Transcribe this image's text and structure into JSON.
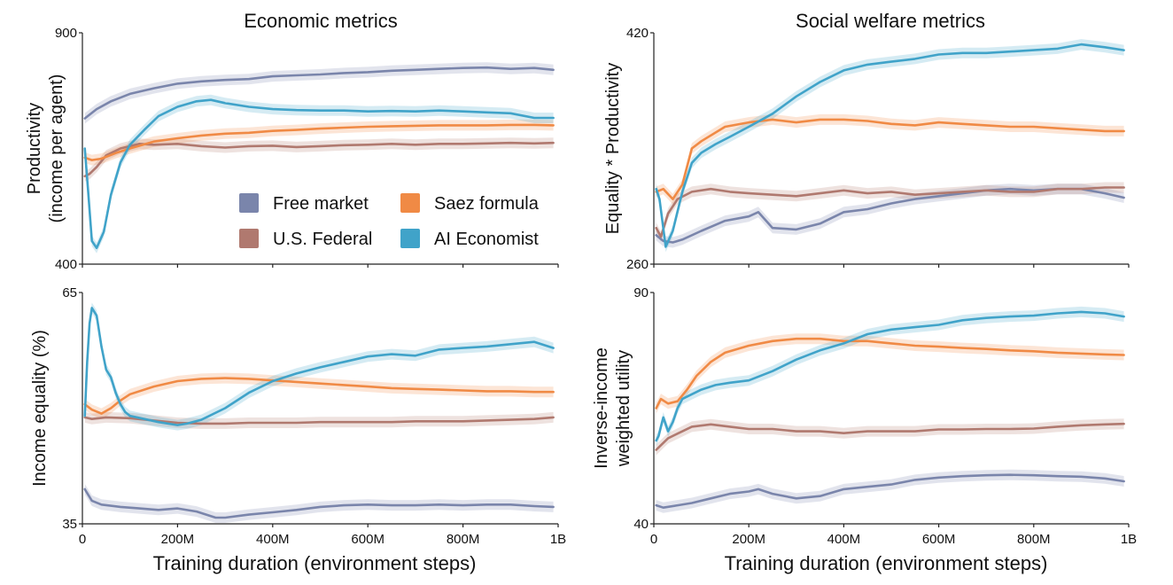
{
  "column_titles": [
    "Economic metrics",
    "Social welfare metrics"
  ],
  "x_axis_title": "Training duration (environment steps)",
  "legend": [
    {
      "name": "Free market",
      "color": "#7a85ab"
    },
    {
      "name": "Saez formula",
      "color": "#f08a45"
    },
    {
      "name": "U.S. Federal",
      "color": "#b0796f"
    },
    {
      "name": "AI Economist",
      "color": "#40a3c9"
    }
  ],
  "chart_data": [
    {
      "type": "line",
      "column_title": "Economic metrics",
      "ylabel_lines": [
        "Productivity",
        "(income per agent)"
      ],
      "xlim": [
        0,
        1000
      ],
      "ylim": [
        400,
        900
      ],
      "x_ticks": [
        0,
        200,
        400,
        600,
        800,
        1000
      ],
      "x_tick_labels": [
        "0",
        "200M",
        "400M",
        "600M",
        "800M",
        "1B"
      ],
      "y_ticks": [
        400,
        900
      ],
      "y_tick_labels": [
        "400",
        "900"
      ],
      "series": [
        {
          "name": "Free market",
          "x": [
            5,
            30,
            60,
            100,
            150,
            200,
            250,
            300,
            350,
            400,
            450,
            500,
            550,
            600,
            650,
            700,
            750,
            800,
            850,
            900,
            950,
            990
          ],
          "y": [
            715,
            735,
            752,
            768,
            780,
            790,
            795,
            798,
            800,
            806,
            808,
            810,
            813,
            815,
            818,
            820,
            822,
            824,
            825,
            822,
            824,
            820
          ]
        },
        {
          "name": "Saez formula",
          "x": [
            5,
            20,
            40,
            70,
            100,
            150,
            200,
            250,
            300,
            350,
            400,
            450,
            500,
            550,
            600,
            650,
            700,
            750,
            800,
            850,
            900,
            950,
            990
          ],
          "y": [
            630,
            625,
            628,
            640,
            650,
            665,
            672,
            678,
            682,
            684,
            688,
            690,
            693,
            695,
            697,
            698,
            699,
            700,
            700,
            700,
            701,
            701,
            700
          ]
        },
        {
          "name": "U.S. Federal",
          "x": [
            5,
            15,
            30,
            50,
            80,
            120,
            150,
            200,
            250,
            300,
            350,
            400,
            450,
            500,
            550,
            600,
            650,
            700,
            750,
            800,
            850,
            900,
            950,
            990
          ],
          "y": [
            590,
            595,
            610,
            635,
            650,
            660,
            658,
            660,
            655,
            652,
            655,
            656,
            653,
            655,
            657,
            658,
            660,
            658,
            660,
            660,
            661,
            662,
            661,
            662
          ]
        },
        {
          "name": "AI Economist",
          "x": [
            5,
            12,
            20,
            30,
            45,
            60,
            80,
            100,
            130,
            160,
            200,
            240,
            270,
            300,
            350,
            400,
            450,
            500,
            550,
            600,
            650,
            700,
            750,
            800,
            850,
            900,
            950,
            990
          ],
          "y": [
            650,
            560,
            450,
            435,
            470,
            550,
            620,
            658,
            690,
            720,
            740,
            752,
            755,
            748,
            740,
            735,
            733,
            732,
            732,
            730,
            731,
            730,
            732,
            730,
            728,
            726,
            716,
            716
          ]
        }
      ]
    },
    {
      "type": "line",
      "column_title": "Social welfare metrics",
      "ylabel_lines": [
        "Equality * Productivity"
      ],
      "xlim": [
        0,
        1000
      ],
      "ylim": [
        260,
        420
      ],
      "x_ticks": [
        0,
        200,
        400,
        600,
        800,
        1000
      ],
      "x_tick_labels": [
        "0",
        "200M",
        "400M",
        "600M",
        "800M",
        "1B"
      ],
      "y_ticks": [
        260,
        420
      ],
      "y_tick_labels": [
        "260",
        "420"
      ],
      "series": [
        {
          "name": "Free market",
          "x": [
            5,
            20,
            40,
            60,
            100,
            150,
            200,
            220,
            250,
            300,
            350,
            400,
            450,
            500,
            550,
            600,
            650,
            700,
            750,
            800,
            850,
            900,
            950,
            990
          ],
          "y": [
            280,
            276,
            275,
            277,
            283,
            290,
            293,
            296,
            285,
            284,
            288,
            296,
            298,
            302,
            305,
            307,
            309,
            311,
            312,
            311,
            312,
            312,
            309,
            306
          ]
        },
        {
          "name": "Saez formula",
          "x": [
            5,
            20,
            40,
            60,
            80,
            100,
            150,
            200,
            250,
            300,
            350,
            400,
            450,
            500,
            550,
            600,
            650,
            700,
            750,
            800,
            850,
            900,
            950,
            990
          ],
          "y": [
            310,
            312,
            305,
            315,
            340,
            345,
            355,
            358,
            360,
            358,
            360,
            360,
            359,
            357,
            356,
            358,
            357,
            356,
            355,
            355,
            354,
            353,
            352,
            352
          ]
        },
        {
          "name": "U.S. Federal",
          "x": [
            5,
            15,
            30,
            50,
            80,
            120,
            160,
            200,
            250,
            300,
            350,
            400,
            450,
            500,
            550,
            600,
            650,
            700,
            750,
            800,
            850,
            900,
            950,
            990
          ],
          "y": [
            285,
            279,
            295,
            305,
            310,
            312,
            310,
            309,
            308,
            307,
            309,
            311,
            309,
            310,
            308,
            309,
            310,
            311,
            310,
            310,
            312,
            312,
            313,
            313
          ]
        },
        {
          "name": "AI Economist",
          "x": [
            5,
            12,
            25,
            40,
            60,
            80,
            100,
            130,
            160,
            200,
            250,
            300,
            350,
            400,
            450,
            500,
            550,
            600,
            650,
            700,
            750,
            800,
            850,
            900,
            950,
            990
          ],
          "y": [
            312,
            305,
            272,
            283,
            310,
            330,
            337,
            343,
            348,
            355,
            364,
            376,
            386,
            394,
            398,
            400,
            402,
            405,
            406,
            406,
            407,
            408,
            409,
            412,
            410,
            408
          ]
        }
      ]
    },
    {
      "type": "line",
      "ylabel_lines": [
        "Income equality (%)"
      ],
      "xlim": [
        0,
        1000
      ],
      "ylim": [
        35,
        65
      ],
      "x_ticks": [
        0,
        200,
        400,
        600,
        800,
        1000
      ],
      "x_tick_labels": [
        "0",
        "200M",
        "400M",
        "600M",
        "800M",
        "1B"
      ],
      "y_ticks": [
        35,
        65
      ],
      "y_tick_labels": [
        "35",
        "65"
      ],
      "series": [
        {
          "name": "Free market",
          "x": [
            5,
            20,
            40,
            80,
            120,
            160,
            200,
            240,
            280,
            300,
            350,
            400,
            450,
            500,
            550,
            600,
            650,
            700,
            750,
            800,
            850,
            900,
            950,
            990
          ],
          "y": [
            39.5,
            38.0,
            37.5,
            37.2,
            37.0,
            36.8,
            37.0,
            36.6,
            35.8,
            35.8,
            36.2,
            36.5,
            36.8,
            37.2,
            37.4,
            37.5,
            37.4,
            37.4,
            37.5,
            37.4,
            37.5,
            37.5,
            37.3,
            37.2
          ]
        },
        {
          "name": "Saez formula",
          "x": [
            5,
            20,
            40,
            60,
            80,
            100,
            150,
            200,
            250,
            300,
            350,
            400,
            450,
            500,
            550,
            600,
            650,
            700,
            750,
            800,
            850,
            900,
            950,
            990
          ],
          "y": [
            50.5,
            49.8,
            49.3,
            50.0,
            51.0,
            51.8,
            52.8,
            53.5,
            53.8,
            53.9,
            53.8,
            53.6,
            53.4,
            53.2,
            53.0,
            52.8,
            52.6,
            52.5,
            52.4,
            52.3,
            52.2,
            52.2,
            52.1,
            52.1
          ]
        },
        {
          "name": "U.S. Federal",
          "x": [
            5,
            20,
            50,
            100,
            150,
            200,
            250,
            300,
            350,
            400,
            450,
            500,
            550,
            600,
            650,
            700,
            750,
            800,
            850,
            900,
            950,
            990
          ],
          "y": [
            48.8,
            48.6,
            48.8,
            48.7,
            48.4,
            48.1,
            48.0,
            48.0,
            48.1,
            48.1,
            48.1,
            48.2,
            48.2,
            48.2,
            48.2,
            48.3,
            48.3,
            48.3,
            48.4,
            48.5,
            48.6,
            48.8
          ]
        },
        {
          "name": "AI Economist",
          "x": [
            5,
            10,
            15,
            20,
            30,
            40,
            50,
            60,
            70,
            80,
            90,
            100,
            130,
            160,
            200,
            220,
            250,
            300,
            350,
            400,
            450,
            500,
            550,
            600,
            650,
            700,
            750,
            800,
            850,
            900,
            950,
            990
          ],
          "y": [
            49,
            56,
            61,
            63,
            62,
            58,
            55,
            54,
            52,
            50.5,
            49.5,
            49,
            48.6,
            48.2,
            47.8,
            48.0,
            48.5,
            50.0,
            52.0,
            53.5,
            54.5,
            55.3,
            56.0,
            56.7,
            57.0,
            56.8,
            57.6,
            57.8,
            58.0,
            58.3,
            58.6,
            57.8
          ]
        }
      ]
    },
    {
      "type": "line",
      "ylabel_lines": [
        "Inverse-income",
        "weighted utility"
      ],
      "xlim": [
        0,
        1000
      ],
      "ylim": [
        40,
        90
      ],
      "x_ticks": [
        0,
        200,
        400,
        600,
        800,
        1000
      ],
      "x_tick_labels": [
        "0",
        "200M",
        "400M",
        "600M",
        "800M",
        "1B"
      ],
      "y_ticks": [
        40,
        90
      ],
      "y_tick_labels": [
        "40",
        "90"
      ],
      "series": [
        {
          "name": "Free market",
          "x": [
            5,
            20,
            50,
            80,
            120,
            160,
            200,
            220,
            250,
            300,
            350,
            400,
            450,
            500,
            550,
            600,
            650,
            700,
            750,
            800,
            850,
            900,
            950,
            990
          ],
          "y": [
            44,
            43.5,
            44,
            44.5,
            45.5,
            46.5,
            47,
            47.5,
            46.5,
            45.5,
            46,
            47.5,
            48,
            48.5,
            49.5,
            50,
            50.3,
            50.5,
            50.6,
            50.5,
            50.3,
            50.2,
            49.8,
            49.2
          ]
        },
        {
          "name": "Saez formula",
          "x": [
            5,
            15,
            30,
            50,
            70,
            90,
            120,
            150,
            200,
            250,
            300,
            350,
            400,
            450,
            500,
            550,
            600,
            650,
            700,
            750,
            800,
            850,
            900,
            950,
            990
          ],
          "y": [
            65,
            67,
            66,
            66.5,
            69,
            72,
            75,
            77,
            78.5,
            79.5,
            80,
            80,
            79.5,
            79.5,
            79,
            78.5,
            78.3,
            78,
            77.8,
            77.5,
            77.3,
            77,
            76.8,
            76.6,
            76.5
          ]
        },
        {
          "name": "U.S. Federal",
          "x": [
            5,
            15,
            30,
            50,
            80,
            120,
            160,
            200,
            250,
            300,
            350,
            400,
            450,
            500,
            550,
            600,
            650,
            700,
            750,
            800,
            850,
            900,
            950,
            990
          ],
          "y": [
            56,
            57,
            58.5,
            59.5,
            61,
            61.5,
            61,
            60.5,
            60.5,
            60,
            60,
            59.6,
            60,
            60,
            60,
            60.4,
            60.4,
            60.5,
            60.5,
            60.6,
            61,
            61.3,
            61.5,
            61.6
          ]
        },
        {
          "name": "AI Economist",
          "x": [
            5,
            10,
            15,
            20,
            30,
            40,
            50,
            60,
            80,
            100,
            130,
            160,
            200,
            250,
            300,
            350,
            400,
            450,
            500,
            550,
            600,
            650,
            700,
            750,
            800,
            850,
            900,
            950,
            990
          ],
          "y": [
            58,
            59,
            61,
            63,
            60,
            62,
            65,
            67,
            68,
            69,
            70,
            70.5,
            71,
            73,
            75.5,
            77.5,
            79,
            81,
            82,
            82.5,
            83,
            84,
            84.5,
            84.8,
            85,
            85.5,
            85.8,
            85.5,
            84.8
          ]
        }
      ]
    }
  ]
}
